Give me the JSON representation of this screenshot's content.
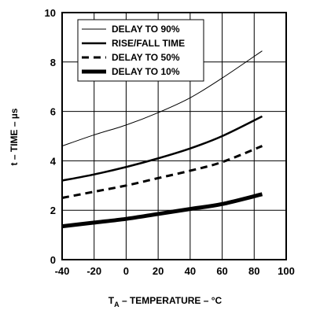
{
  "chart_data": {
    "type": "line",
    "xlabel": "T_A – TEMPERATURE – °C",
    "xlabel_main": "T",
    "xlabel_sub": "A",
    "xlabel_rest": " – TEMPERATURE – °C",
    "ylabel": "t – TIME – µs",
    "xlim": [
      -40,
      100
    ],
    "ylim": [
      0,
      10
    ],
    "x_ticks": [
      -40,
      -20,
      0,
      20,
      40,
      60,
      80,
      100
    ],
    "y_ticks": [
      0,
      2,
      4,
      6,
      8,
      10
    ],
    "grid": true,
    "legend_position": "top-left",
    "series": [
      {
        "name": "DELAY TO 90%",
        "style": "thin-solid",
        "x": [
          -40,
          -20,
          0,
          20,
          40,
          60,
          85
        ],
        "y": [
          4.6,
          5.05,
          5.45,
          5.95,
          6.55,
          7.35,
          8.45
        ]
      },
      {
        "name": "RISE/FALL TIME",
        "style": "medium-solid",
        "x": [
          -40,
          -20,
          0,
          20,
          40,
          60,
          85
        ],
        "y": [
          3.2,
          3.45,
          3.75,
          4.1,
          4.5,
          5.0,
          5.8
        ]
      },
      {
        "name": "DELAY TO 50%",
        "style": "dashed",
        "x": [
          -40,
          -20,
          0,
          20,
          40,
          60,
          85
        ],
        "y": [
          2.5,
          2.75,
          3.0,
          3.3,
          3.6,
          3.95,
          4.6
        ]
      },
      {
        "name": "DELAY TO 10%",
        "style": "thick-solid",
        "x": [
          -40,
          -20,
          0,
          20,
          40,
          60,
          85
        ],
        "y": [
          1.35,
          1.5,
          1.65,
          1.85,
          2.05,
          2.25,
          2.65
        ]
      }
    ]
  }
}
